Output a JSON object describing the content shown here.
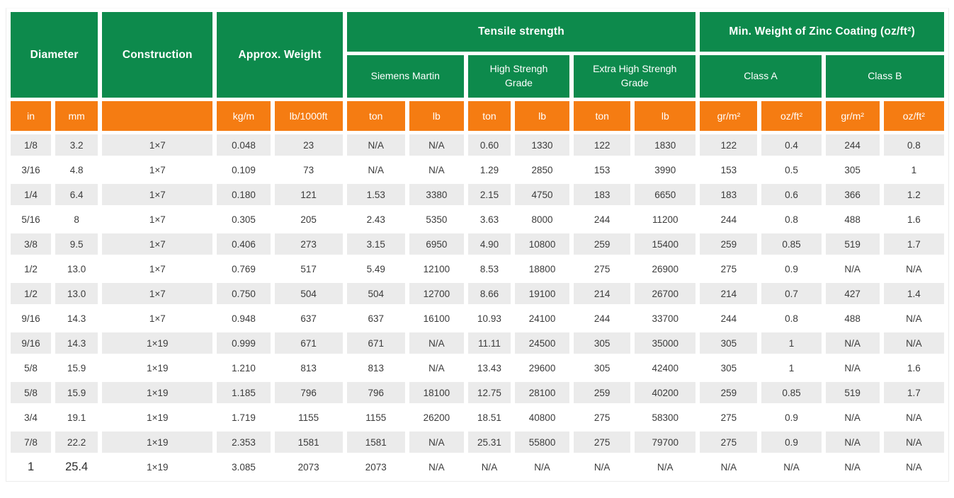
{
  "table": {
    "header_groups": {
      "diameter": "Diameter",
      "construction": "Construction",
      "approx_weight": "Approx. Weight",
      "tensile_strength": "Tensile strength",
      "zinc_coating": "Min. Weight of Zinc Coating (oz/ft²)"
    },
    "subheaders": {
      "siemens_martin": "Siemens Martin",
      "high_strength": "High Strengh Grade",
      "extra_high_strength": "Extra High Strengh Grade",
      "class_a": "Class A",
      "class_b": "Class B"
    },
    "column_keys": [
      "diameter-in",
      "diameter-mm",
      "construction",
      "weight-kg-m",
      "weight-lb-1000ft",
      "siemens-ton",
      "siemens-lb",
      "high-grade-ton",
      "high-grade-lb",
      "extra-high-ton",
      "extra-high-lb",
      "class-a-gr-m2",
      "class-a-oz-ft2",
      "class-b-gr-m2",
      "class-b-oz-ft2"
    ],
    "units": [
      "in",
      "mm",
      "",
      "kg/m",
      "lb/1000ft",
      "ton",
      "lb",
      "ton",
      "lb",
      "ton",
      "lb",
      "gr/m²",
      "oz/ft²",
      "gr/m²",
      "oz/ft²"
    ],
    "rows": [
      [
        "1/8",
        "3.2",
        "1×7",
        "0.048",
        "23",
        "N/A",
        "N/A",
        "0.60",
        "1330",
        "122",
        "1830",
        "122",
        "0.4",
        "244",
        "0.8"
      ],
      [
        "3/16",
        "4.8",
        "1×7",
        "0.109",
        "73",
        "N/A",
        "N/A",
        "1.29",
        "2850",
        "153",
        "3990",
        "153",
        "0.5",
        "305",
        "1"
      ],
      [
        "1/4",
        "6.4",
        "1×7",
        "0.180",
        "121",
        "1.53",
        "3380",
        "2.15",
        "4750",
        "183",
        "6650",
        "183",
        "0.6",
        "366",
        "1.2"
      ],
      [
        "5/16",
        "8",
        "1×7",
        "0.305",
        "205",
        "2.43",
        "5350",
        "3.63",
        "8000",
        "244",
        "11200",
        "244",
        "0.8",
        "488",
        "1.6"
      ],
      [
        "3/8",
        "9.5",
        "1×7",
        "0.406",
        "273",
        "3.15",
        "6950",
        "4.90",
        "10800",
        "259",
        "15400",
        "259",
        "0.85",
        "519",
        "1.7"
      ],
      [
        "1/2",
        "13.0",
        "1×7",
        "0.769",
        "517",
        "5.49",
        "12100",
        "8.53",
        "18800",
        "275",
        "26900",
        "275",
        "0.9",
        "N/A",
        "N/A"
      ],
      [
        "1/2",
        "13.0",
        "1×7",
        "0.750",
        "504",
        "504",
        "12700",
        "8.66",
        "19100",
        "214",
        "26700",
        "214",
        "0.7",
        "427",
        "1.4"
      ],
      [
        "9/16",
        "14.3",
        "1×7",
        "0.948",
        "637",
        "637",
        "16100",
        "10.93",
        "24100",
        "244",
        "33700",
        "244",
        "0.8",
        "488",
        "N/A"
      ],
      [
        "9/16",
        "14.3",
        "1×19",
        "0.999",
        "671",
        "671",
        "N/A",
        "11.11",
        "24500",
        "305",
        "35000",
        "305",
        "1",
        "N/A",
        "N/A"
      ],
      [
        "5/8",
        "15.9",
        "1×19",
        "1.210",
        "813",
        "813",
        "N/A",
        "13.43",
        "29600",
        "305",
        "42400",
        "305",
        "1",
        "N/A",
        "1.6"
      ],
      [
        "5/8",
        "15.9",
        "1×19",
        "1.185",
        "796",
        "796",
        "18100",
        "12.75",
        "28100",
        "259",
        "40200",
        "259",
        "0.85",
        "519",
        "1.7"
      ],
      [
        "3/4",
        "19.1",
        "1×19",
        "1.719",
        "1155",
        "1155",
        "26200",
        "18.51",
        "40800",
        "275",
        "58300",
        "275",
        "0.9",
        "N/A",
        "N/A"
      ],
      [
        "7/8",
        "22.2",
        "1×19",
        "2.353",
        "1581",
        "1581",
        "N/A",
        "25.31",
        "55800",
        "275",
        "79700",
        "275",
        "0.9",
        "N/A",
        "N/A"
      ],
      [
        "1",
        "25.4",
        "1×19",
        "3.085",
        "2073",
        "2073",
        "N/A",
        "N/A",
        "N/A",
        "N/A",
        "N/A",
        "N/A",
        "N/A",
        "N/A",
        "N/A"
      ]
    ],
    "colors": {
      "header_green": "#0d8a4c",
      "units_orange": "#f57c12",
      "row_stripe_gray": "#ebebeb",
      "header_text": "#ffffff",
      "body_text": "#3b3b3b"
    }
  }
}
